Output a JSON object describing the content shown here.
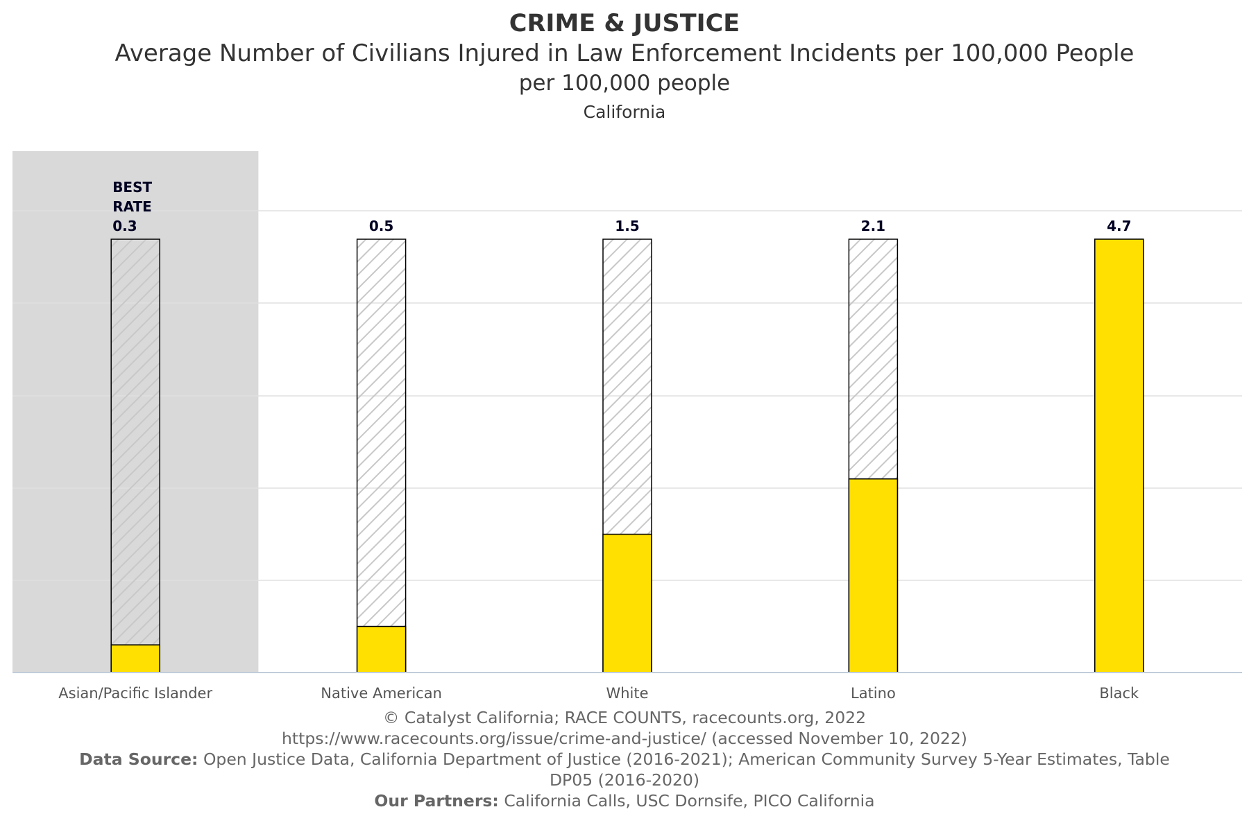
{
  "header": {
    "title": "CRIME & JUSTICE",
    "subtitle": "Average Number of Civilians Injured in Law Enforcement Incidents per 100,000 People",
    "unit_line": "per 100,000 people",
    "geography": "California"
  },
  "chart_data": {
    "type": "bar",
    "categories": [
      "Asian/Pacific Islander",
      "Native American",
      "White",
      "Latino",
      "Black"
    ],
    "values": [
      0.3,
      0.5,
      1.5,
      2.1,
      4.7
    ],
    "value_labels": [
      "0.3",
      "0.5",
      "1.5",
      "2.1",
      "4.7"
    ],
    "best_label": [
      "BEST",
      "RATE"
    ],
    "best_index": 0,
    "ylim": [
      0,
      4.7
    ],
    "grid": true,
    "colors": {
      "bar_fill": "#FFE000",
      "bar_outline": "#000000",
      "hatch": "#C8C8C8",
      "best_highlight": "#D9D9D9",
      "gridline": "#E0E0E0",
      "axis": "#C0CCDA"
    }
  },
  "footer": {
    "copyright": "© Catalyst California; RACE COUNTS, racecounts.org, 2022",
    "url": "https://www.racecounts.org/issue/crime-and-justice/ (accessed November 10, 2022)",
    "source_label": "Data Source:",
    "source_text": "Open Justice Data, California Department of Justice (2016-2021); American Community Survey 5-Year Estimates, Table DP05 (2016-2020)",
    "partners_label": "Our Partners:",
    "partners_text": "California Calls, USC Dornsife, PICO California"
  }
}
